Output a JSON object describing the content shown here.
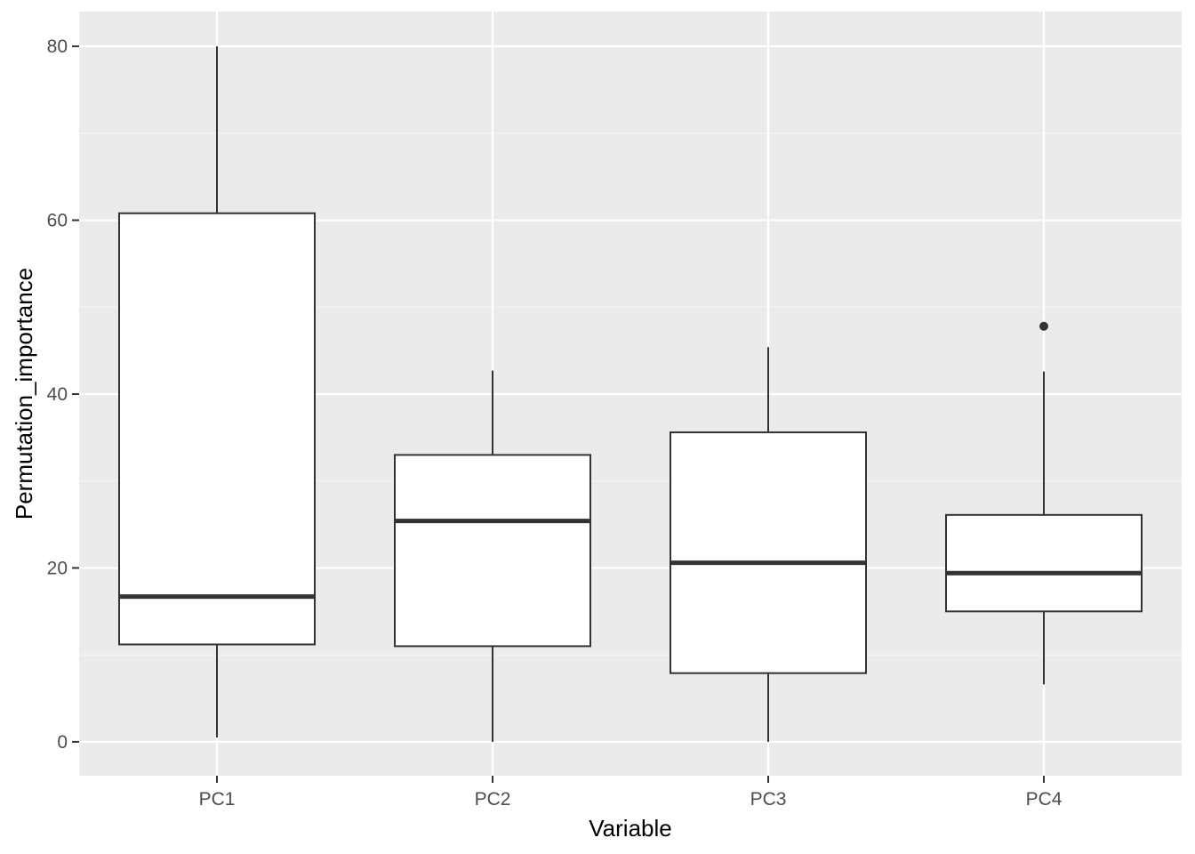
{
  "chart_data": {
    "type": "boxplot",
    "title": "",
    "xlabel": "Variable",
    "ylabel": "Permutation_importance",
    "categories": [
      "PC1",
      "PC2",
      "PC3",
      "PC4"
    ],
    "ylim": [
      -3.9,
      84
    ],
    "yticks": [
      0,
      20,
      40,
      60,
      80
    ],
    "grid": true,
    "legend": "none",
    "boxes": [
      {
        "category": "PC1",
        "whisker_low": 0.5,
        "q1": 11.2,
        "median": 16.7,
        "q3": 60.8,
        "whisker_high": 80,
        "outliers": []
      },
      {
        "category": "PC2",
        "whisker_low": 0.0,
        "q1": 11.0,
        "median": 25.4,
        "q3": 33.0,
        "whisker_high": 42.7,
        "outliers": []
      },
      {
        "category": "PC3",
        "whisker_low": 0.0,
        "q1": 7.9,
        "median": 20.6,
        "q3": 35.6,
        "whisker_high": 45.4,
        "outliers": []
      },
      {
        "category": "PC4",
        "whisker_low": 6.6,
        "q1": 15.0,
        "median": 19.4,
        "q3": 26.1,
        "whisker_high": 42.6,
        "outliers": [
          47.8
        ]
      }
    ],
    "colors": {
      "panel": "#ebebeb",
      "grid_major": "#ffffff",
      "grid_minor": "#f7f7f7",
      "box_fill": "#ffffff",
      "box_line": "#333333",
      "tick_text": "#4d4d4d",
      "title_text": "#000000"
    }
  }
}
